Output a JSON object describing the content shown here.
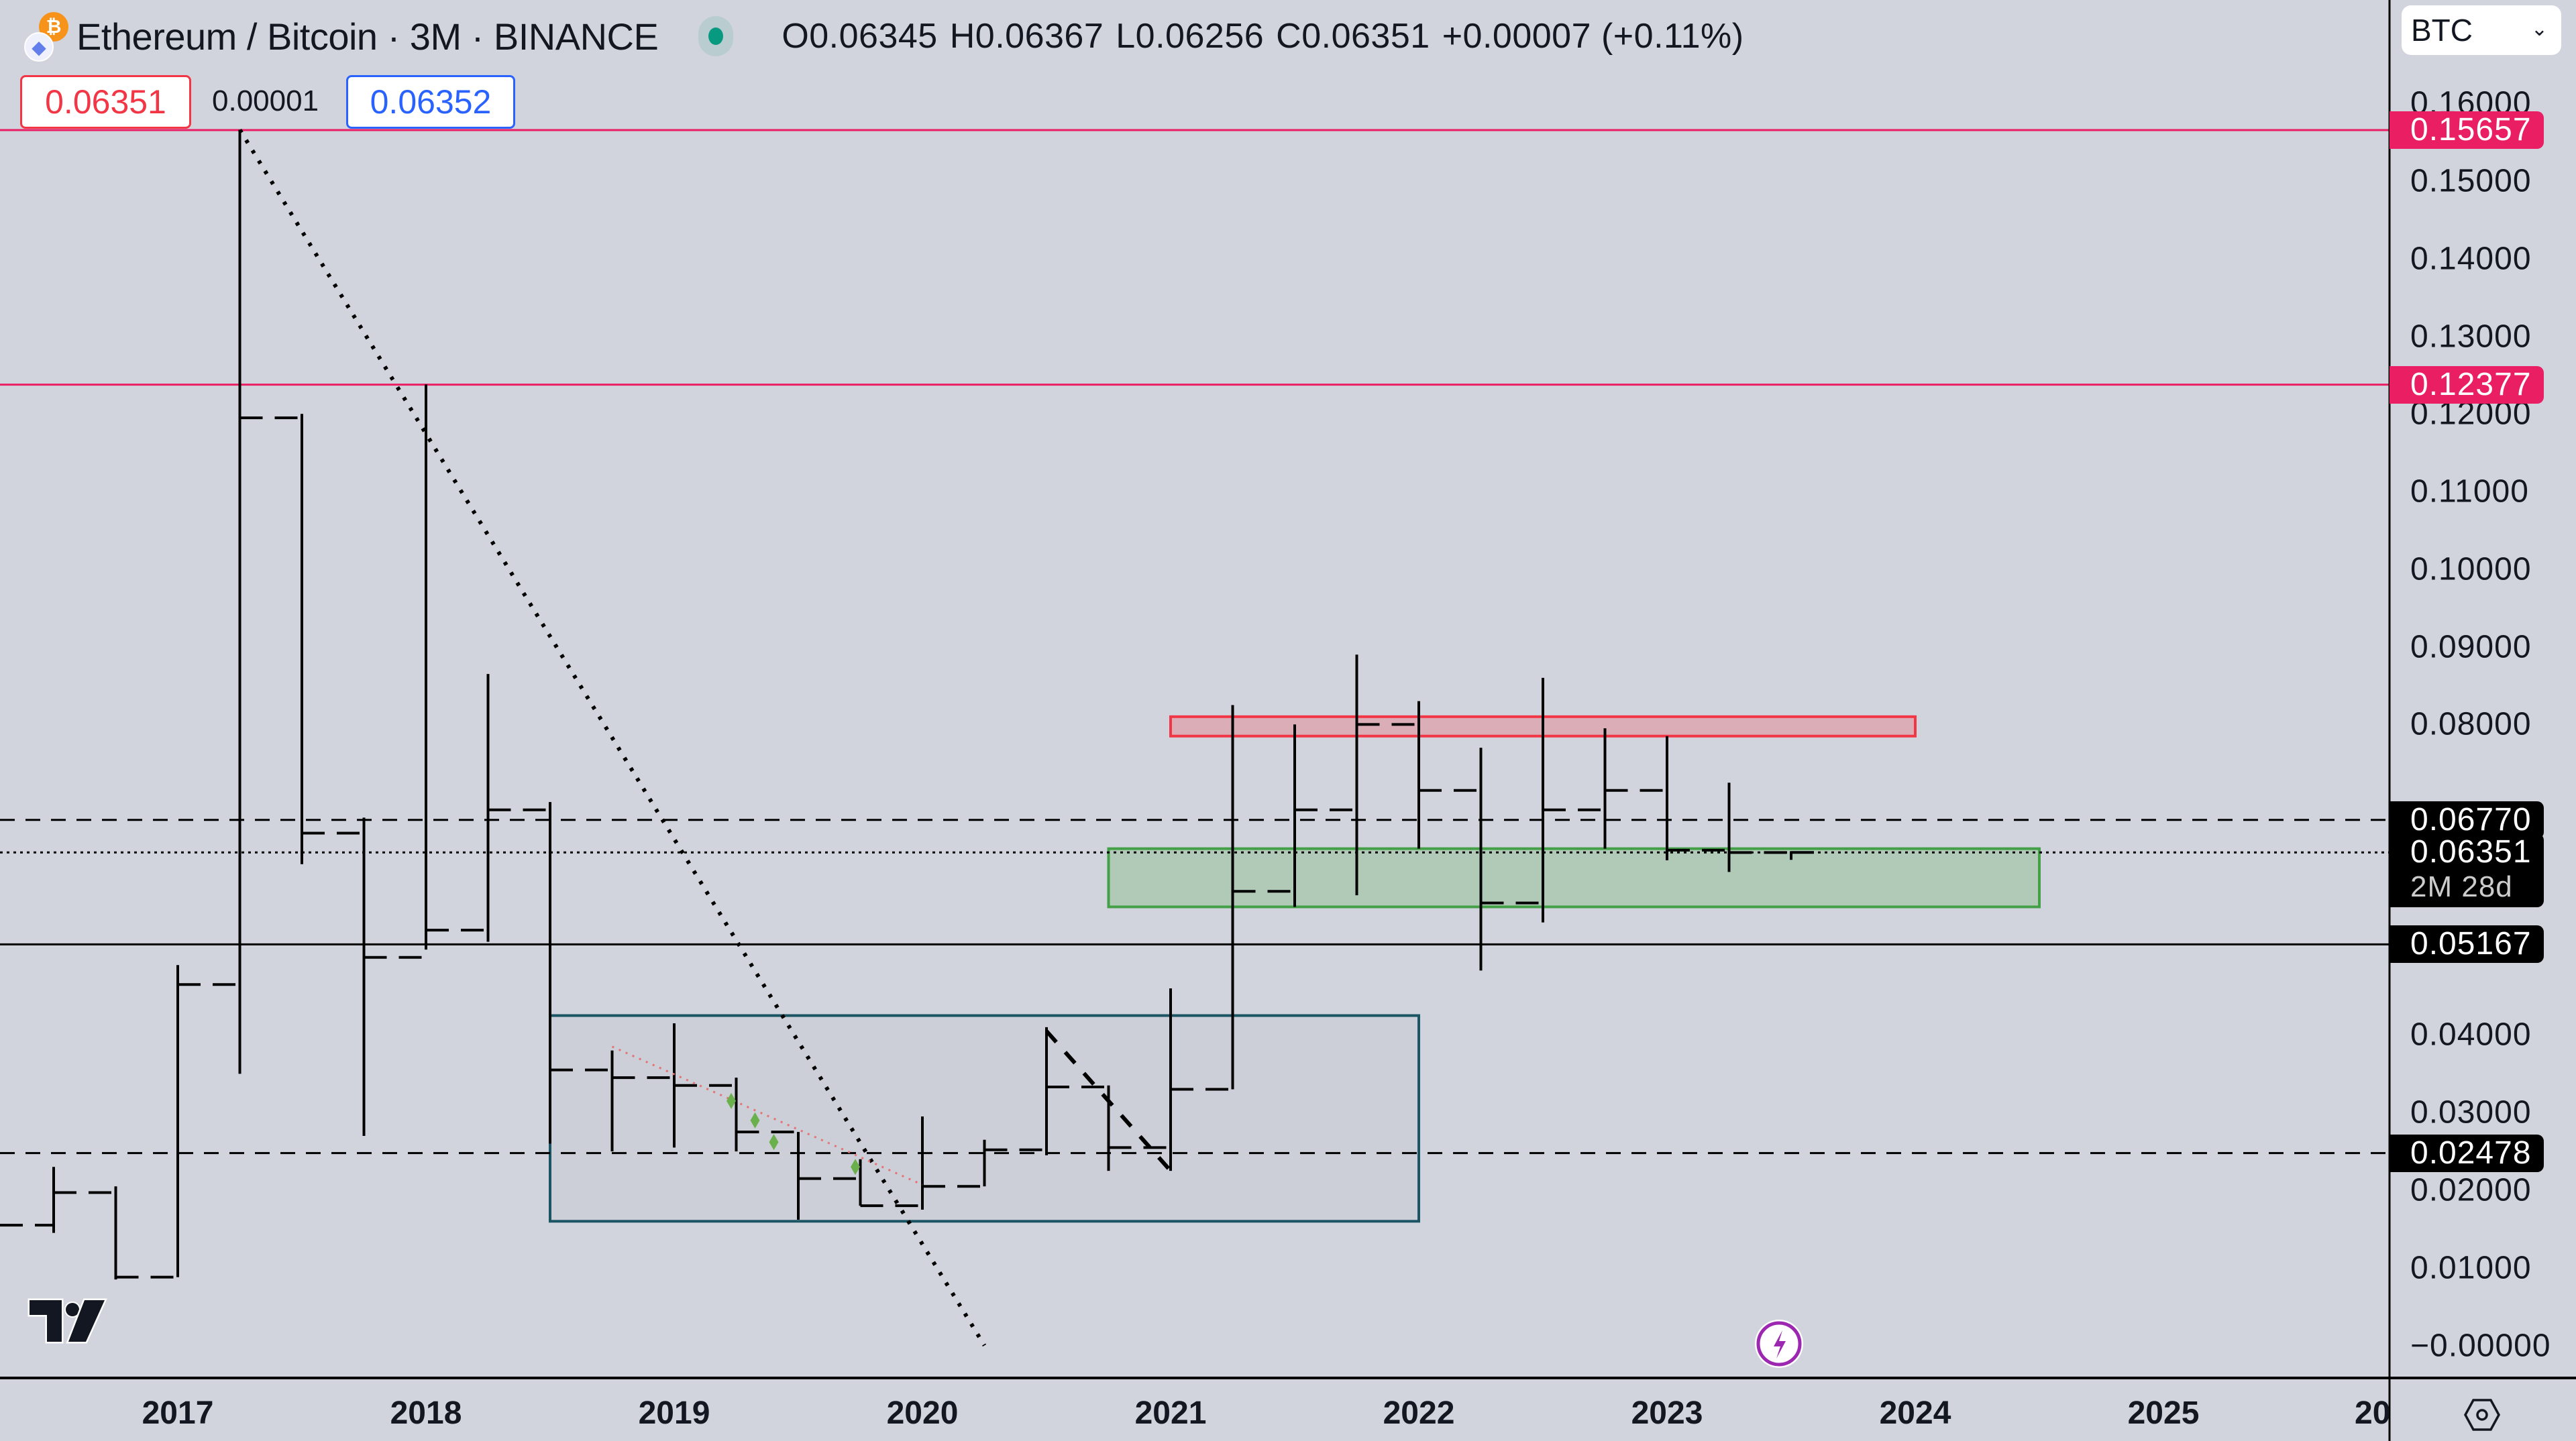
{
  "header": {
    "title": "Ethereum / Bitcoin · 3M · BINANCE",
    "base_icon": "ethereum-icon",
    "quote_icon": "bitcoin-icon",
    "market_status": "open",
    "ohlc": {
      "open": "O0.06345",
      "high": "H0.06367",
      "low": "L0.06256",
      "close": "C0.06351",
      "change": "+0.00007 (+0.11%)"
    }
  },
  "trade": {
    "sell_price": "0.06351",
    "spread": "0.00001",
    "buy_price": "0.06352"
  },
  "price_axis": {
    "currency": "BTC",
    "ticks": [
      "0.16000",
      "0.15000",
      "0.14000",
      "0.13000",
      "0.12000",
      "0.11000",
      "0.10000",
      "0.09000",
      "0.08000",
      "0.04000",
      "0.03000",
      "0.02000",
      "0.01000",
      "−0.00000"
    ],
    "tick_values": [
      0.16,
      0.15,
      0.14,
      0.13,
      0.12,
      0.11,
      0.1,
      0.09,
      0.08,
      0.04,
      0.03,
      0.02,
      0.01,
      0.0
    ],
    "labels": [
      {
        "text": "0.15657",
        "value": 0.15657,
        "color": "#e91e63"
      },
      {
        "text": "0.12377",
        "value": 0.12377,
        "color": "#e91e63"
      },
      {
        "text": "0.06770",
        "value": 0.0677,
        "color": "#000000"
      },
      {
        "text": "0.06351",
        "sub": "2M 28d",
        "value": 0.06351,
        "color": "#000000"
      },
      {
        "text": "0.05167",
        "value": 0.05167,
        "color": "#000000"
      },
      {
        "text": "0.02478",
        "value": 0.02478,
        "color": "#000000"
      }
    ]
  },
  "time_axis": {
    "ticks": [
      "2017",
      "2018",
      "2019",
      "2020",
      "2021",
      "2022",
      "2023",
      "2024",
      "2025",
      "20"
    ]
  },
  "colors": {
    "background": "#d1d4dc",
    "bars": "#000000",
    "resistance_line": "#e91e63",
    "red_zone_fill": "#dca8b1",
    "red_zone_border": "#f23645",
    "green_zone_fill": "#adc9b4",
    "green_zone_border": "#43a047",
    "range_box_border": "#1b5563",
    "range_box_fill": "#c9ccd5"
  },
  "chart_data": {
    "type": "line",
    "style": "step bars (3M high-low + close)",
    "title": "Ethereum / Bitcoin · 3M · BINANCE",
    "xlabel": "",
    "ylabel": "BTC",
    "ylim": [
      0,
      0.165
    ],
    "x_ticks": [
      "2017",
      "2018",
      "2019",
      "2020",
      "2021",
      "2022",
      "2023",
      "2024",
      "2025"
    ],
    "bars": [
      {
        "period": "2016-Q2",
        "high": 0.0,
        "low": 0.0,
        "close": 0.0155
      },
      {
        "period": "2016-Q3",
        "high": 0.023,
        "low": 0.0145,
        "close": 0.0197
      },
      {
        "period": "2016-Q4",
        "high": 0.0205,
        "low": 0.0085,
        "close": 0.0088
      },
      {
        "period": "2017-Q1",
        "high": 0.049,
        "low": 0.0088,
        "close": 0.0465
      },
      {
        "period": "2017-Q2",
        "high": 0.1566,
        "low": 0.035,
        "close": 0.1195
      },
      {
        "period": "2017-Q3",
        "high": 0.12,
        "low": 0.062,
        "close": 0.066
      },
      {
        "period": "2017-Q4",
        "high": 0.068,
        "low": 0.027,
        "close": 0.05
      },
      {
        "period": "2018-Q1",
        "high": 0.1238,
        "low": 0.051,
        "close": 0.0535
      },
      {
        "period": "2018-Q2",
        "high": 0.0865,
        "low": 0.052,
        "close": 0.069
      },
      {
        "period": "2018-Q3",
        "high": 0.07,
        "low": 0.026,
        "close": 0.0355
      },
      {
        "period": "2018-Q4",
        "high": 0.038,
        "low": 0.025,
        "close": 0.0345
      },
      {
        "period": "2019-Q1",
        "high": 0.0415,
        "low": 0.0255,
        "close": 0.0335
      },
      {
        "period": "2019-Q2",
        "high": 0.0345,
        "low": 0.025,
        "close": 0.0275
      },
      {
        "period": "2019-Q3",
        "high": 0.0275,
        "low": 0.0162,
        "close": 0.0215
      },
      {
        "period": "2019-Q4",
        "high": 0.024,
        "low": 0.018,
        "close": 0.018
      },
      {
        "period": "2020-Q1",
        "high": 0.0295,
        "low": 0.0175,
        "close": 0.0205
      },
      {
        "period": "2020-Q2",
        "high": 0.0265,
        "low": 0.0205,
        "close": 0.0252
      },
      {
        "period": "2020-Q3",
        "high": 0.041,
        "low": 0.0245,
        "close": 0.0333
      },
      {
        "period": "2020-Q4",
        "high": 0.0335,
        "low": 0.0225,
        "close": 0.0255
      },
      {
        "period": "2021-Q1",
        "high": 0.046,
        "low": 0.0225,
        "close": 0.033
      },
      {
        "period": "2021-Q2",
        "high": 0.0825,
        "low": 0.033,
        "close": 0.0585
      },
      {
        "period": "2021-Q3",
        "high": 0.08,
        "low": 0.0565,
        "close": 0.069
      },
      {
        "period": "2021-Q4",
        "high": 0.089,
        "low": 0.058,
        "close": 0.08
      },
      {
        "period": "2022-Q1",
        "high": 0.083,
        "low": 0.064,
        "close": 0.0715
      },
      {
        "period": "2022-Q2",
        "high": 0.077,
        "low": 0.0483,
        "close": 0.057
      },
      {
        "period": "2022-Q3",
        "high": 0.086,
        "low": 0.0545,
        "close": 0.069
      },
      {
        "period": "2022-Q4",
        "high": 0.0795,
        "low": 0.064,
        "close": 0.0715
      },
      {
        "period": "2023-Q1",
        "high": 0.0785,
        "low": 0.0625,
        "close": 0.0638
      },
      {
        "period": "2023-Q2",
        "high": 0.0725,
        "low": 0.061,
        "close": 0.0635
      },
      {
        "period": "2023-Q3",
        "high": 0.06367,
        "low": 0.06256,
        "close": 0.06351
      }
    ],
    "horizontal_levels": [
      {
        "value": 0.15657,
        "style": "solid",
        "color": "#e91e63"
      },
      {
        "value": 0.12377,
        "style": "solid",
        "color": "#e91e63"
      },
      {
        "value": 0.0677,
        "style": "dashed",
        "color": "#000000"
      },
      {
        "value": 0.06351,
        "style": "dotted",
        "color": "#000000"
      },
      {
        "value": 0.05167,
        "style": "solid",
        "color": "#000000"
      },
      {
        "value": 0.02478,
        "style": "dashed",
        "color": "#000000"
      }
    ],
    "zones": [
      {
        "name": "resistance",
        "from": "2021-Q1",
        "to": "2023-Q4",
        "low": 0.0785,
        "high": 0.081,
        "color": "#f23645"
      },
      {
        "name": "support",
        "from": "2020-Q4",
        "to": "2024-Q2",
        "low": 0.0565,
        "high": 0.064,
        "color": "#43a047"
      },
      {
        "name": "accumulation-range",
        "from": "2018-Q3",
        "to": "2021-Q4",
        "low": 0.016,
        "high": 0.0425,
        "color": "#1b5563"
      }
    ],
    "trendlines": [
      {
        "style": "dotted",
        "from": {
          "period": "2017-Q2",
          "value": 0.1566
        },
        "to": {
          "period": "2020-Q2",
          "value": 0.0
        },
        "color": "#000000"
      },
      {
        "style": "dashed",
        "from": {
          "period": "2020-Q3",
          "value": 0.0405
        },
        "to": {
          "period": "2021-Q1",
          "value": 0.0225
        },
        "color": "#000000"
      },
      {
        "style": "dotted",
        "from": {
          "period": "2018-Q4",
          "value": 0.0385
        },
        "to": {
          "period": "2020-Q1",
          "value": 0.0207
        },
        "color": "#e57373"
      }
    ],
    "markers": [
      {
        "period": "2019-Q1",
        "value": 0.0315,
        "shape": "diamond",
        "color": "#6ab04c"
      },
      {
        "period": "2019-Q2",
        "value": 0.029,
        "shape": "diamond",
        "color": "#6ab04c"
      },
      {
        "period": "2019-Q2",
        "value": 0.0262,
        "shape": "diamond",
        "color": "#6ab04c"
      },
      {
        "period": "2019-Q3",
        "value": 0.023,
        "shape": "diamond",
        "color": "#6ab04c"
      }
    ]
  },
  "footer": {
    "logo": "tradingview-logo",
    "bolt_icon": "lightning-icon",
    "settings_icon": "settings-hexagon-icon"
  }
}
